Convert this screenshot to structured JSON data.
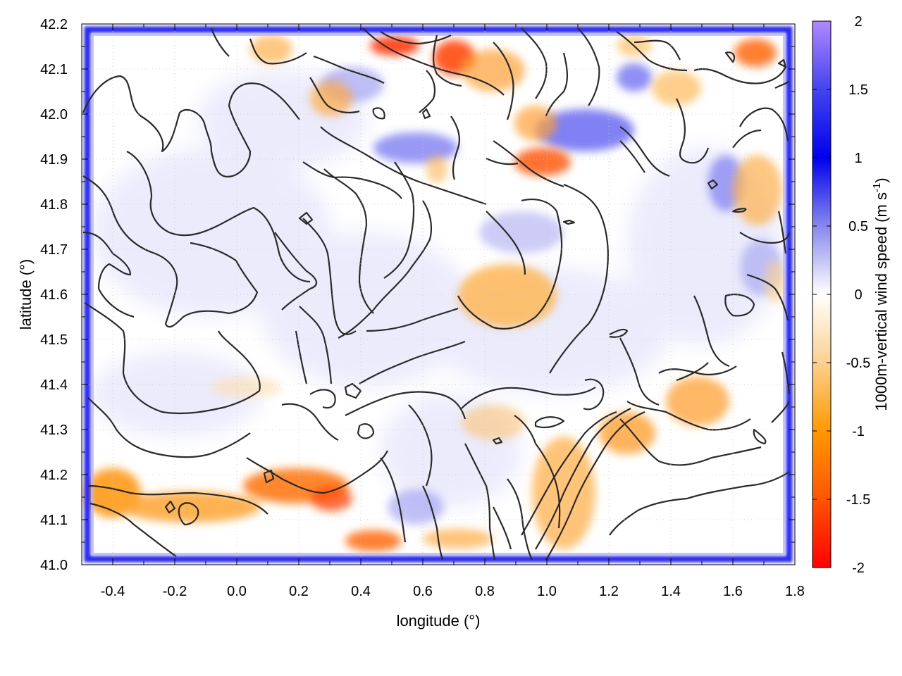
{
  "chart_data": {
    "type": "heatmap",
    "title": "",
    "xlabel": "longitude (°)",
    "ylabel": "latitude (°)",
    "colorbar_label": "1000m-vertical wind speed (m s",
    "colorbar_label_sup": "-1",
    "colorbar_label_end": ")",
    "xlim": [
      -0.5,
      1.8
    ],
    "ylim": [
      41.0,
      42.2
    ],
    "clim": [
      -2,
      2
    ],
    "x_ticks": [
      -0.4,
      -0.2,
      0.0,
      0.2,
      0.4,
      0.6,
      0.8,
      1.0,
      1.2,
      1.4,
      1.6,
      1.8
    ],
    "x_tick_labels": [
      "-0.4",
      "-0.2",
      "0.0",
      "0.2",
      "0.4",
      "0.6",
      "0.8",
      "1.0",
      "1.2",
      "1.4",
      "1.6",
      "1.8"
    ],
    "y_ticks": [
      41.0,
      41.1,
      41.2,
      41.3,
      41.4,
      41.5,
      41.6,
      41.7,
      41.8,
      41.9,
      42.0,
      42.1,
      42.2
    ],
    "y_tick_labels": [
      "41.0",
      "41.1",
      "41.2",
      "41.3",
      "41.4",
      "41.5",
      "41.6",
      "41.7",
      "41.8",
      "41.9",
      "42.0",
      "42.1",
      "42.2"
    ],
    "colorbar_ticks": [
      2,
      1.5,
      1,
      0.5,
      0,
      -0.5,
      -1,
      -1.5,
      -2
    ],
    "colorbar_tick_labels": [
      "2",
      "1.5",
      "1",
      "0.5",
      "0",
      "-0.5",
      "-1",
      "-1.5",
      "-2"
    ],
    "colormap": {
      "positive_stops": [
        "#ffffff",
        "#c8c8f8",
        "#3333ee",
        "#0000ee",
        "#9966ee",
        "#b088ff"
      ],
      "negative_stops": [
        "#ffffff",
        "#fbd9a8",
        "#ff9900",
        "#ff5500",
        "#ff0000"
      ]
    },
    "grid": true,
    "features": {
      "downdraft_cores": [
        {
          "lon": 0.5,
          "lat": 42.16,
          "value": -1.8
        },
        {
          "lon": 0.7,
          "lat": 42.13,
          "value": -1.6
        },
        {
          "lon": 0.95,
          "lat": 41.9,
          "value": -1.3
        },
        {
          "lon": 1.67,
          "lat": 42.13,
          "value": -1.3
        },
        {
          "lon": 0.3,
          "lat": 41.15,
          "value": -1.4
        },
        {
          "lon": -0.45,
          "lat": 41.16,
          "value": -1.2
        },
        {
          "lon": -0.15,
          "lat": 41.11,
          "value": -1.0
        },
        {
          "lon": 0.48,
          "lat": 41.05,
          "value": -1.3
        },
        {
          "lon": 0.85,
          "lat": 41.57,
          "value": -0.8
        },
        {
          "lon": 1.5,
          "lat": 41.35,
          "value": -0.9
        },
        {
          "lon": 1.25,
          "lat": 41.28,
          "value": -0.9
        },
        {
          "lon": 1.7,
          "lat": 41.8,
          "value": -0.7
        }
      ],
      "updraft_cores": [
        {
          "lon": 1.15,
          "lat": 41.97,
          "value": 1.0
        },
        {
          "lon": 0.6,
          "lat": 41.9,
          "value": 0.9
        },
        {
          "lon": 1.55,
          "lat": 41.85,
          "value": 0.8
        },
        {
          "lon": 0.95,
          "lat": 41.72,
          "value": 0.5
        }
      ]
    }
  }
}
